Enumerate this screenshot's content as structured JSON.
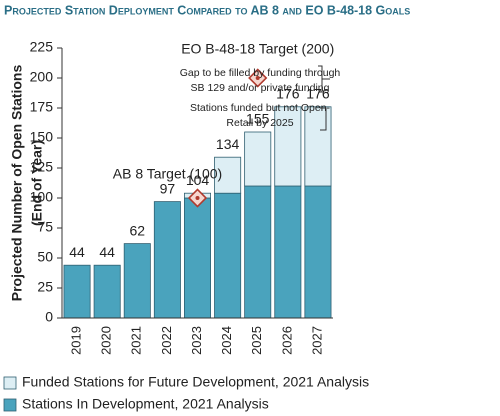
{
  "chart_data": {
    "type": "bar",
    "stacked": true,
    "title": "Projected Station Deployment Compared to AB 8 and EO B-48-18 Goals",
    "ylabel_lines": [
      "Projected Number of Open Stations",
      "(End of Year)"
    ],
    "categories": [
      "2019",
      "2020",
      "2021",
      "2022",
      "2023",
      "2024",
      "2025",
      "2026",
      "2027"
    ],
    "series": [
      {
        "name": "Stations In Development, 2021 Analysis",
        "color": "#4aa3bd",
        "values": [
          44,
          44,
          62,
          97,
          100,
          104,
          110,
          110,
          110
        ]
      },
      {
        "name": "Funded Stations for Future Development, 2021 Analysis",
        "color": "#ddeef4",
        "values": [
          0,
          0,
          0,
          0,
          4,
          30,
          45,
          66,
          66
        ]
      }
    ],
    "total_labels": [
      44,
      44,
      62,
      97,
      104,
      134,
      155,
      176,
      176
    ],
    "targets": [
      {
        "label": "AB 8 Target (100)",
        "x": "2023",
        "value": 100
      },
      {
        "label": "EO B-48-18 Target (200)",
        "x": "2025",
        "value": 200
      }
    ],
    "annotations": [
      {
        "lines": [
          "Gap to be filled by funding through",
          "SB 129 and/or private funding"
        ]
      },
      {
        "lines": [
          "Stations funded but not Open-",
          "Retail by 2025"
        ]
      }
    ],
    "ylim": [
      0,
      225
    ],
    "yticks": [
      0,
      25,
      50,
      75,
      100,
      125,
      150,
      175,
      200,
      225
    ],
    "grid": false
  }
}
